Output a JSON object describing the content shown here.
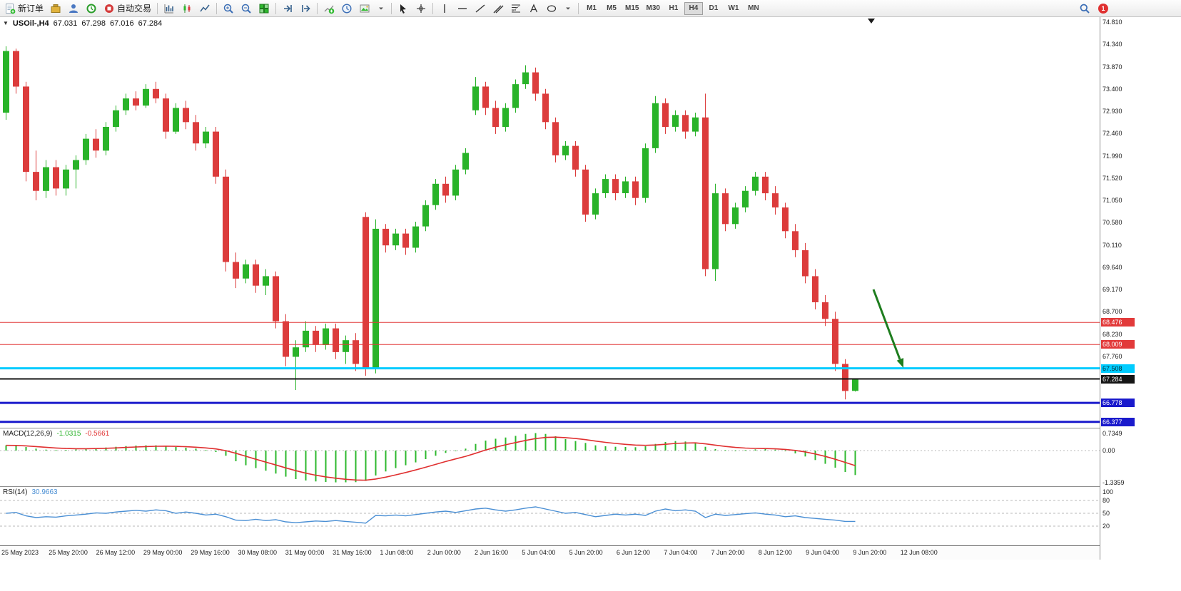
{
  "toolbar": {
    "new_order_label": "新订单",
    "autotrading_label": "自动交易",
    "timeframes": [
      "M1",
      "M5",
      "M15",
      "M30",
      "H1",
      "H4",
      "D1",
      "W1",
      "MN"
    ],
    "active_timeframe": "H4",
    "notification_count": "1",
    "collapse_arrow_glyph": "▼",
    "icons": [
      "new-order-icon",
      "market-watch-icon",
      "data-window-icon",
      "history-icon",
      "autotrading-icon",
      "bar-chart-icon",
      "candlestick-chart-icon",
      "line-chart-icon",
      "zoom-in-icon",
      "zoom-out-icon",
      "tile-windows-icon",
      "auto-scroll-icon",
      "chart-shift-icon",
      "indicators-icon",
      "periods-icon",
      "templates-icon",
      "dropdown-icon",
      "cursor-icon",
      "crosshair-icon",
      "vertical-line-icon",
      "horizontal-line-icon",
      "trendline-icon",
      "channel-icon",
      "fibonacci-icon",
      "text-icon",
      "shapes-icon",
      "search-icon",
      "notifications-badge"
    ]
  },
  "chart": {
    "symbol_period": "USOil-,H4",
    "open": "67.031",
    "high": "67.298",
    "low": "67.016",
    "close": "67.284",
    "price_axis": [
      "74.810",
      "74.340",
      "73.870",
      "73.400",
      "72.930",
      "72.460",
      "71.990",
      "71.520",
      "71.050",
      "70.580",
      "70.110",
      "69.640",
      "69.170",
      "68.700",
      "68.230",
      "67.760"
    ],
    "hlines": [
      {
        "price": 68.476,
        "label": "68.476",
        "color": "#e23a3a",
        "width": 1,
        "label_bg": "#e23a3a",
        "label_fg": "#ffffff"
      },
      {
        "price": 68.009,
        "label": "68.009",
        "color": "#e23a3a",
        "width": 1,
        "label_bg": "#e23a3a",
        "label_fg": "#ffffff"
      },
      {
        "price": 67.508,
        "label": "67.508",
        "color": "#00ccff",
        "width": 3,
        "label_bg": "#00ccff",
        "label_fg": "#00303d"
      },
      {
        "price": 67.284,
        "label": "67.284",
        "color": "#151515",
        "width": 2,
        "label_bg": "#151515",
        "label_fg": "#ffffff"
      },
      {
        "price": 66.778,
        "label": "66.778",
        "color": "#1a1acc",
        "width": 3,
        "label_bg": "#1a1acc",
        "label_fg": "#ffffff"
      },
      {
        "price": 66.377,
        "label": "66.377",
        "color": "#1a1acc",
        "width": 3,
        "label_bg": "#1a1acc",
        "label_fg": "#ffffff"
      }
    ],
    "time_axis": [
      "25 May 2023",
      "25 May 20:00",
      "26 May 12:00",
      "29 May 00:00",
      "29 May 16:00",
      "30 May 08:00",
      "31 May 00:00",
      "31 May 16:00",
      "1 Jun 08:00",
      "2 Jun 00:00",
      "2 Jun 16:00",
      "5 Jun 04:00",
      "5 Jun 20:00",
      "6 Jun 12:00",
      "7 Jun 04:00",
      "7 Jun 20:00",
      "8 Jun 12:00",
      "9 Jun 04:00",
      "9 Jun 20:00",
      "12 Jun 08:00"
    ],
    "annotation_arrow_color": "#1e7d1e"
  },
  "indicators": {
    "macd": {
      "label": "MACD(12,26,9)",
      "main_value": "-1.0315",
      "signal_value": "-0.5661",
      "axis_labels": [
        "0.7349",
        "0.00",
        "-1.3359"
      ]
    },
    "rsi": {
      "label": "RSI(14)",
      "value": "30.9663",
      "axis_labels": [
        "100",
        "80",
        "50",
        "20"
      ],
      "levels": [
        80,
        50,
        20
      ]
    }
  },
  "chart_data": {
    "type": "candlestick",
    "symbol": "USOil",
    "period": "H4",
    "bull_color": "#29b329",
    "bear_color": "#dc3c3c",
    "price_axis_range": [
      66.3,
      74.81
    ],
    "candles": [
      [
        72.9,
        74.3,
        72.75,
        74.2
      ],
      [
        74.2,
        74.25,
        73.3,
        73.45
      ],
      [
        73.45,
        73.55,
        71.45,
        71.65
      ],
      [
        71.65,
        72.1,
        71.05,
        71.25
      ],
      [
        71.25,
        71.9,
        71.1,
        71.75
      ],
      [
        71.75,
        71.9,
        71.15,
        71.3
      ],
      [
        71.3,
        71.8,
        71.15,
        71.7
      ],
      [
        71.7,
        72.0,
        71.3,
        71.9
      ],
      [
        71.9,
        72.45,
        71.8,
        72.35
      ],
      [
        72.35,
        72.55,
        71.95,
        72.1
      ],
      [
        72.1,
        72.7,
        72.0,
        72.6
      ],
      [
        72.6,
        73.05,
        72.5,
        72.95
      ],
      [
        72.95,
        73.3,
        72.85,
        73.2
      ],
      [
        73.2,
        73.35,
        72.95,
        73.05
      ],
      [
        73.05,
        73.5,
        73.0,
        73.4
      ],
      [
        73.4,
        73.55,
        73.1,
        73.2
      ],
      [
        73.2,
        73.3,
        72.35,
        72.5
      ],
      [
        72.5,
        73.1,
        72.45,
        73.0
      ],
      [
        73.0,
        73.15,
        72.55,
        72.7
      ],
      [
        72.7,
        72.85,
        72.1,
        72.25
      ],
      [
        72.25,
        72.6,
        72.15,
        72.5
      ],
      [
        72.5,
        72.6,
        71.4,
        71.55
      ],
      [
        71.55,
        71.7,
        69.55,
        69.75
      ],
      [
        69.75,
        69.95,
        69.2,
        69.4
      ],
      [
        69.4,
        69.8,
        69.3,
        69.7
      ],
      [
        69.7,
        69.8,
        69.1,
        69.25
      ],
      [
        69.25,
        69.6,
        69.05,
        69.45
      ],
      [
        69.45,
        69.55,
        68.35,
        68.5
      ],
      [
        68.5,
        68.65,
        67.55,
        67.75
      ],
      [
        67.75,
        68.1,
        67.05,
        67.95
      ],
      [
        67.95,
        68.5,
        67.85,
        68.3
      ],
      [
        68.3,
        68.4,
        67.85,
        68.0
      ],
      [
        68.0,
        68.45,
        67.9,
        68.35
      ],
      [
        68.35,
        68.45,
        67.7,
        67.85
      ],
      [
        67.85,
        68.2,
        67.6,
        68.1
      ],
      [
        68.1,
        68.25,
        67.45,
        67.6
      ],
      [
        70.7,
        70.8,
        67.35,
        67.5
      ],
      [
        67.5,
        70.65,
        67.4,
        70.45
      ],
      [
        70.45,
        70.55,
        69.95,
        70.1
      ],
      [
        70.1,
        70.45,
        70.0,
        70.35
      ],
      [
        70.35,
        70.45,
        69.9,
        70.05
      ],
      [
        70.05,
        70.6,
        69.95,
        70.5
      ],
      [
        70.5,
        71.05,
        70.4,
        70.95
      ],
      [
        70.95,
        71.5,
        70.85,
        71.4
      ],
      [
        71.4,
        71.55,
        71.0,
        71.15
      ],
      [
        71.15,
        71.8,
        71.05,
        71.7
      ],
      [
        71.7,
        72.15,
        71.6,
        72.05
      ],
      [
        72.95,
        73.65,
        72.85,
        73.45
      ],
      [
        73.45,
        73.55,
        72.85,
        73.0
      ],
      [
        73.0,
        73.15,
        72.45,
        72.6
      ],
      [
        72.6,
        73.1,
        72.5,
        73.0
      ],
      [
        73.0,
        73.6,
        72.9,
        73.5
      ],
      [
        73.5,
        73.9,
        73.4,
        73.75
      ],
      [
        73.75,
        73.85,
        73.15,
        73.3
      ],
      [
        73.3,
        73.4,
        72.55,
        72.7
      ],
      [
        72.7,
        72.8,
        71.85,
        72.0
      ],
      [
        72.0,
        72.3,
        71.9,
        72.2
      ],
      [
        72.2,
        72.3,
        71.55,
        71.7
      ],
      [
        71.7,
        71.8,
        70.6,
        70.75
      ],
      [
        70.75,
        71.3,
        70.65,
        71.2
      ],
      [
        71.2,
        71.6,
        71.1,
        71.5
      ],
      [
        71.5,
        71.6,
        71.05,
        71.2
      ],
      [
        71.2,
        71.55,
        71.1,
        71.45
      ],
      [
        71.45,
        71.55,
        70.95,
        71.1
      ],
      [
        71.1,
        72.25,
        71.0,
        72.15
      ],
      [
        72.15,
        73.25,
        72.05,
        73.1
      ],
      [
        73.1,
        73.2,
        72.45,
        72.6
      ],
      [
        72.6,
        72.95,
        72.5,
        72.85
      ],
      [
        72.85,
        72.95,
        72.35,
        72.5
      ],
      [
        72.5,
        72.9,
        72.4,
        72.8
      ],
      [
        72.8,
        73.3,
        69.45,
        69.6
      ],
      [
        69.6,
        71.4,
        69.35,
        71.2
      ],
      [
        71.2,
        71.3,
        70.4,
        70.55
      ],
      [
        70.55,
        71.0,
        70.45,
        70.9
      ],
      [
        70.9,
        71.35,
        70.8,
        71.25
      ],
      [
        71.25,
        71.65,
        71.15,
        71.55
      ],
      [
        71.55,
        71.65,
        71.05,
        71.2
      ],
      [
        71.2,
        71.35,
        70.75,
        70.9
      ],
      [
        70.9,
        71.0,
        70.25,
        70.4
      ],
      [
        70.4,
        70.55,
        69.85,
        70.0
      ],
      [
        70.0,
        70.15,
        69.3,
        69.45
      ],
      [
        69.45,
        69.6,
        68.75,
        68.9
      ],
      [
        68.9,
        69.05,
        68.4,
        68.55
      ],
      [
        68.55,
        68.7,
        67.45,
        67.6
      ],
      [
        67.6,
        67.7,
        66.85,
        67.03
      ],
      [
        67.031,
        67.298,
        67.016,
        67.284
      ]
    ],
    "macd_main": [
      0.22,
      0.2,
      0.15,
      0.08,
      0.04,
      0.02,
      0.03,
      0.05,
      0.08,
      0.1,
      0.13,
      0.16,
      0.19,
      0.21,
      0.22,
      0.22,
      0.2,
      0.15,
      0.12,
      0.08,
      0.02,
      -0.06,
      -0.22,
      -0.45,
      -0.62,
      -0.74,
      -0.85,
      -0.97,
      -1.1,
      -1.2,
      -1.26,
      -1.3,
      -1.32,
      -1.34,
      -1.3359,
      -1.33,
      -1.28,
      -1.05,
      -0.88,
      -0.74,
      -0.62,
      -0.5,
      -0.36,
      -0.22,
      -0.1,
      -0.02,
      0.08,
      0.28,
      0.42,
      0.5,
      0.55,
      0.62,
      0.7,
      0.7349,
      0.7,
      0.6,
      0.48,
      0.4,
      0.32,
      0.22,
      0.18,
      0.16,
      0.15,
      0.14,
      0.18,
      0.28,
      0.36,
      0.4,
      0.38,
      0.34,
      0.16,
      0.06,
      0.02,
      0.0,
      0.02,
      0.05,
      0.06,
      0.04,
      -0.02,
      -0.12,
      -0.25,
      -0.4,
      -0.56,
      -0.72,
      -0.9,
      -1.0315
    ],
    "macd_signal_smoothing": 0.25,
    "rsi": [
      50,
      52,
      44,
      40,
      42,
      41,
      44,
      46,
      48,
      51,
      50,
      53,
      55,
      57,
      55,
      58,
      56,
      50,
      53,
      50,
      46,
      48,
      42,
      34,
      33,
      36,
      33,
      35,
      30,
      28,
      30,
      32,
      31,
      33,
      31,
      29,
      27,
      45,
      44,
      46,
      44,
      47,
      50,
      53,
      55,
      52,
      56,
      60,
      62,
      58,
      55,
      58,
      62,
      65,
      60,
      55,
      50,
      52,
      47,
      42,
      45,
      48,
      46,
      48,
      45,
      55,
      60,
      56,
      58,
      55,
      40,
      48,
      45,
      47,
      49,
      51,
      48,
      46,
      42,
      44,
      40,
      38,
      36,
      34,
      31,
      30.97
    ]
  }
}
